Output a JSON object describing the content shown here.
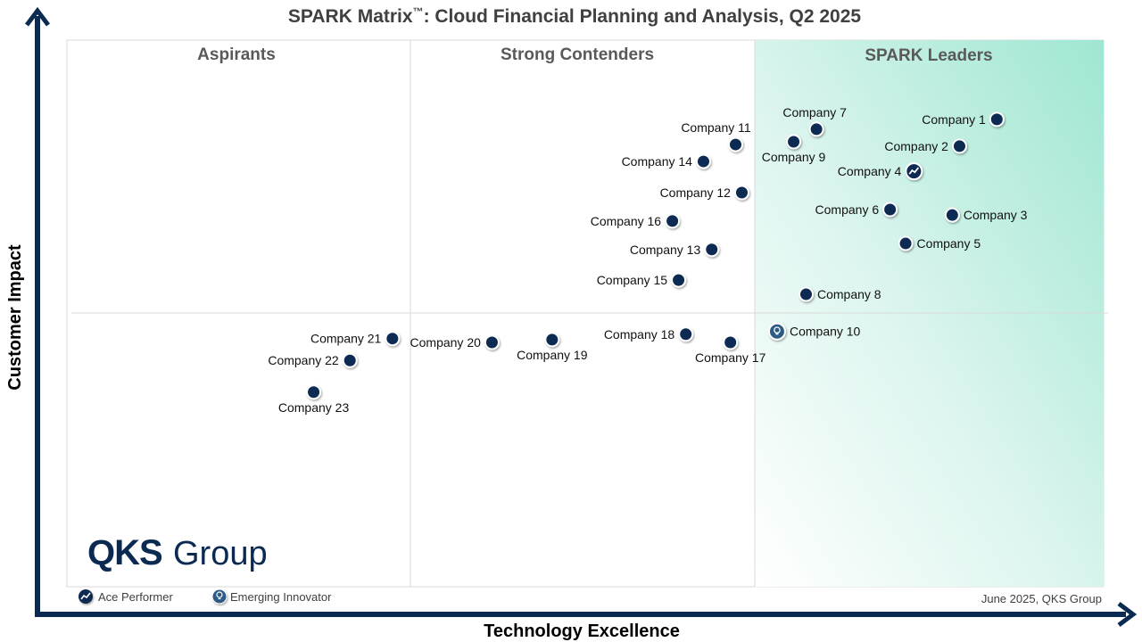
{
  "chart_data": {
    "type": "scatter",
    "title": "SPARK Matrix™: Cloud Financial Planning and Analysis, Q2 2025",
    "title_main": "SPARK Matrix",
    "title_tm": "™",
    "title_rest": ": Cloud Financial Planning and Analysis, Q2 2025",
    "xlabel": "Technology Excellence",
    "ylabel": "Customer Impact",
    "xlim": [
      0,
      10
    ],
    "ylim": [
      0,
      10
    ],
    "grid": false,
    "quadrants": [
      {
        "label": "Aspirants"
      },
      {
        "label": "Strong Contenders"
      },
      {
        "label": "SPARK Leaders"
      }
    ],
    "legend": [
      {
        "label": "Ace Performer",
        "icon": "trend-up-icon"
      },
      {
        "label": "Emerging Innovator",
        "icon": "lightbulb-icon"
      }
    ],
    "footer_note": "June 2025, QKS Group",
    "logo": "QKS Group",
    "colors": {
      "marker": "#0b2a52",
      "axis": "#0b2a52",
      "leaders_gradient": "#9fe6d2"
    },
    "points": [
      {
        "name": "Company 1",
        "x": 8.97,
        "y": 8.55,
        "label_pos": "left"
      },
      {
        "name": "Company 2",
        "x": 8.61,
        "y": 8.06,
        "label_pos": "left"
      },
      {
        "name": "Company 3",
        "x": 8.54,
        "y": 6.8,
        "label_pos": "right"
      },
      {
        "name": "Company 4",
        "x": 8.17,
        "y": 7.6,
        "label_pos": "left",
        "badge": "Ace Performer"
      },
      {
        "name": "Company 5",
        "x": 8.09,
        "y": 6.28,
        "label_pos": "right"
      },
      {
        "name": "Company 6",
        "x": 7.94,
        "y": 6.9,
        "label_pos": "left"
      },
      {
        "name": "Company 7",
        "x": 7.23,
        "y": 8.37,
        "label_pos": "above"
      },
      {
        "name": "Company 8",
        "x": 7.13,
        "y": 5.35,
        "label_pos": "right"
      },
      {
        "name": "Company 9",
        "x": 7.01,
        "y": 8.14,
        "label_pos": "below"
      },
      {
        "name": "Company 10",
        "x": 6.85,
        "y": 4.67,
        "label_pos": "right",
        "badge": "Emerging Innovator"
      },
      {
        "name": "Company 11",
        "x": 6.45,
        "y": 8.09,
        "label_pos": "above"
      },
      {
        "name": "Company 12",
        "x": 6.51,
        "y": 7.21,
        "label_pos": "left"
      },
      {
        "name": "Company 13",
        "x": 6.22,
        "y": 6.17,
        "label_pos": "left"
      },
      {
        "name": "Company 14",
        "x": 6.14,
        "y": 7.78,
        "label_pos": "left"
      },
      {
        "name": "Company 15",
        "x": 5.9,
        "y": 5.61,
        "label_pos": "left"
      },
      {
        "name": "Company 16",
        "x": 5.84,
        "y": 6.69,
        "label_pos": "left"
      },
      {
        "name": "Company 17",
        "x": 6.4,
        "y": 4.47,
        "label_pos": "below"
      },
      {
        "name": "Company 18",
        "x": 5.97,
        "y": 4.62,
        "label_pos": "left"
      },
      {
        "name": "Company 19",
        "x": 4.68,
        "y": 4.52,
        "label_pos": "below"
      },
      {
        "name": "Company 20",
        "x": 4.1,
        "y": 4.47,
        "label_pos": "left"
      },
      {
        "name": "Company 21",
        "x": 3.14,
        "y": 4.54,
        "label_pos": "left"
      },
      {
        "name": "Company 22",
        "x": 2.73,
        "y": 4.14,
        "label_pos": "left"
      },
      {
        "name": "Company 23",
        "x": 2.38,
        "y": 3.56,
        "label_pos": "below"
      }
    ]
  }
}
